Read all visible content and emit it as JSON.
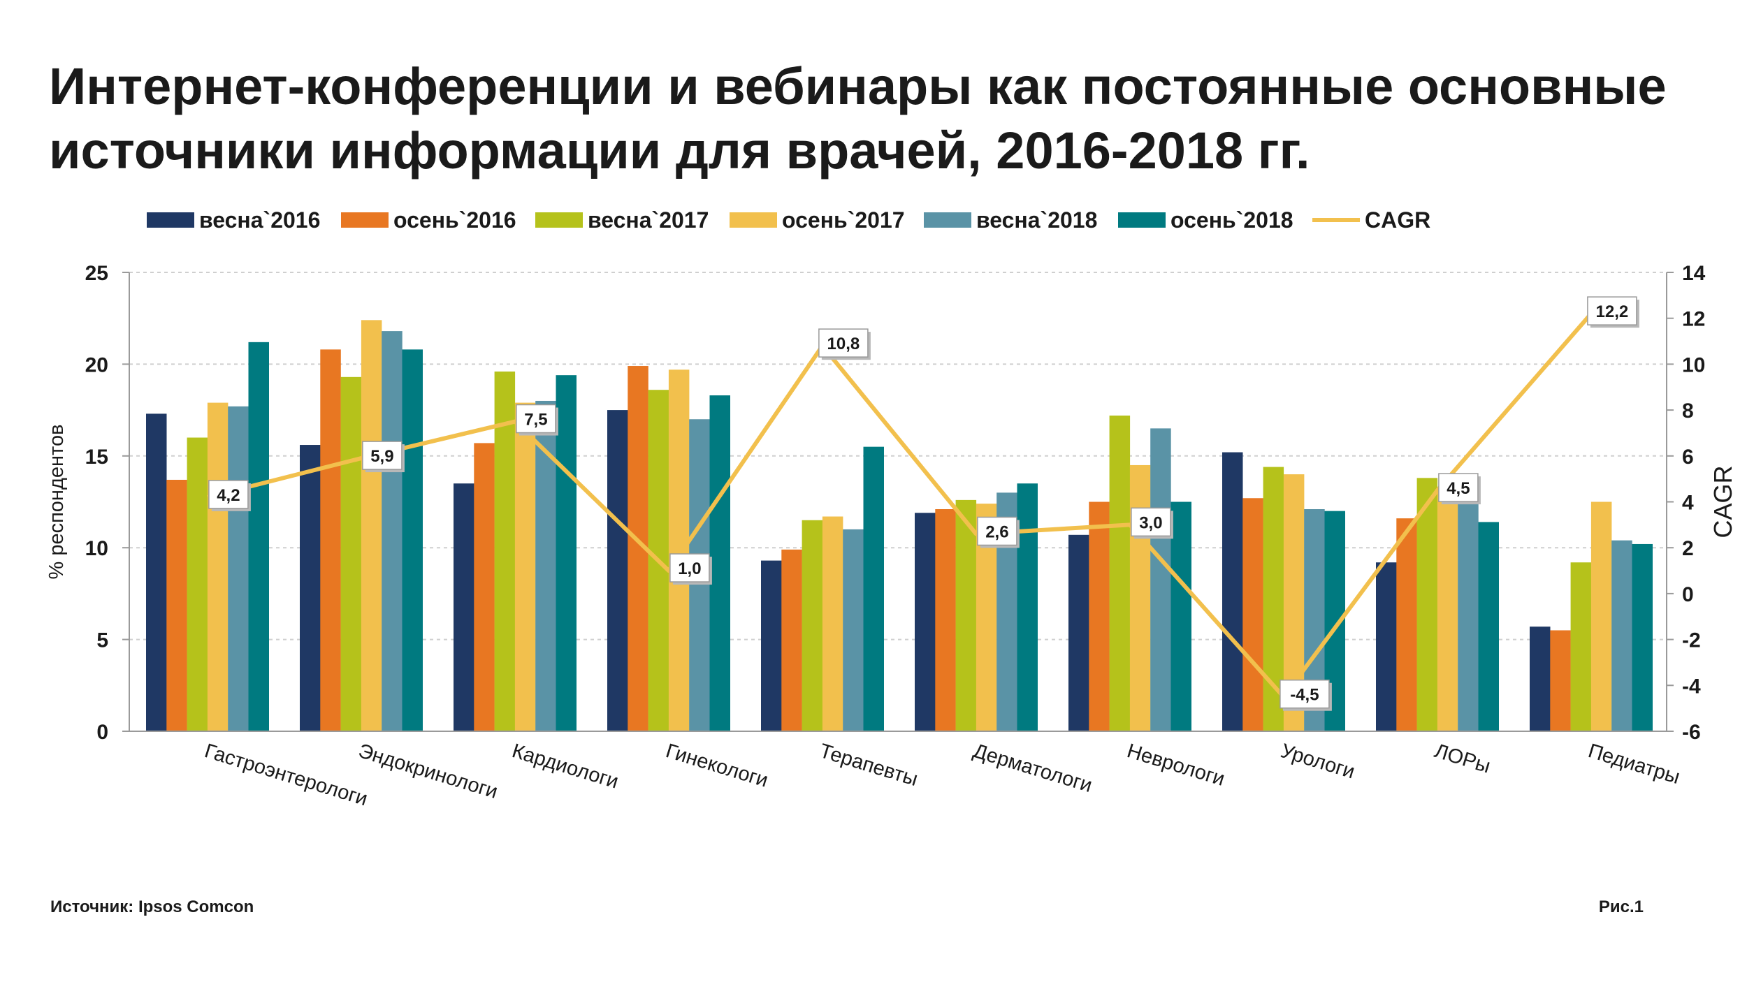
{
  "title": "Интернет-конференции и вебинары как постоянные основные источники информации для врачей, 2016-2018 гг.",
  "footer": {
    "source": "Источник: Ipsos Comcon",
    "figure": "Рис.1"
  },
  "chart_data": {
    "type": "bar",
    "categories": [
      "Гастроэнтерологи",
      "Эндокринологи",
      "Кардиологи",
      "Гинекологи",
      "Терапевты",
      "Дерматологи",
      "Неврологи",
      "Урологи",
      "ЛОРы",
      "Педиатры"
    ],
    "series": [
      {
        "name": "весна`2016",
        "color": "#1f3864",
        "values": [
          17.3,
          15.6,
          13.5,
          17.5,
          9.3,
          11.9,
          10.7,
          15.2,
          9.2,
          5.7
        ]
      },
      {
        "name": "осень`2016",
        "color": "#e87722",
        "values": [
          13.7,
          20.8,
          15.7,
          19.9,
          9.9,
          12.1,
          12.5,
          12.7,
          11.6,
          5.5
        ]
      },
      {
        "name": "весна`2017",
        "color": "#b5c21b",
        "values": [
          16.0,
          19.3,
          19.6,
          18.6,
          11.5,
          12.6,
          17.2,
          14.4,
          13.8,
          9.2
        ]
      },
      {
        "name": "осень`2017",
        "color": "#f2c04d",
        "values": [
          17.9,
          22.4,
          17.9,
          19.7,
          11.7,
          12.4,
          14.5,
          14.0,
          13.1,
          12.5
        ]
      },
      {
        "name": "весна`2018",
        "color": "#5a93a6",
        "values": [
          17.7,
          21.8,
          18.0,
          17.0,
          11.0,
          13.0,
          16.5,
          12.1,
          13.0,
          10.4
        ]
      },
      {
        "name": "осень`2018",
        "color": "#007a80",
        "values": [
          21.2,
          20.8,
          19.4,
          18.3,
          15.5,
          13.5,
          12.5,
          12.0,
          11.4,
          10.2
        ]
      }
    ],
    "line": {
      "name": "CAGR",
      "color": "#f2c04d",
      "values": [
        4.2,
        5.9,
        7.5,
        1.0,
        10.8,
        2.6,
        3.0,
        -4.5,
        4.5,
        12.2
      ],
      "labels": [
        "4,2",
        "5,9",
        "7,5",
        "1,0",
        "10,8",
        "2,6",
        "3,0",
        "-4,5",
        "4,5",
        "12,2"
      ]
    },
    "ylabel": "% респондентов",
    "y2label": "CAGR",
    "ylim": [
      0,
      25
    ],
    "yticks": [
      0,
      5,
      10,
      15,
      20,
      25
    ],
    "y2lim": [
      -6,
      14
    ],
    "y2ticks": [
      -6,
      -4,
      -2,
      0,
      2,
      4,
      6,
      8,
      10,
      12,
      14
    ],
    "grid": true,
    "legend": "top"
  }
}
